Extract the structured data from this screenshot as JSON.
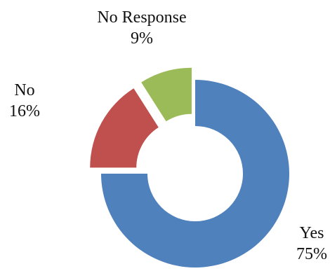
{
  "chart_data": {
    "type": "pie",
    "style": "exploded-donut",
    "slices": [
      {
        "label": "Yes",
        "value": 75,
        "value_label": "75%",
        "color": "#4F81BD"
      },
      {
        "label": "No",
        "value": 16,
        "value_label": "16%",
        "color": "#C0504D"
      },
      {
        "label": "No Response",
        "value": 9,
        "value_label": "9%",
        "color": "#9BBB59"
      }
    ]
  }
}
